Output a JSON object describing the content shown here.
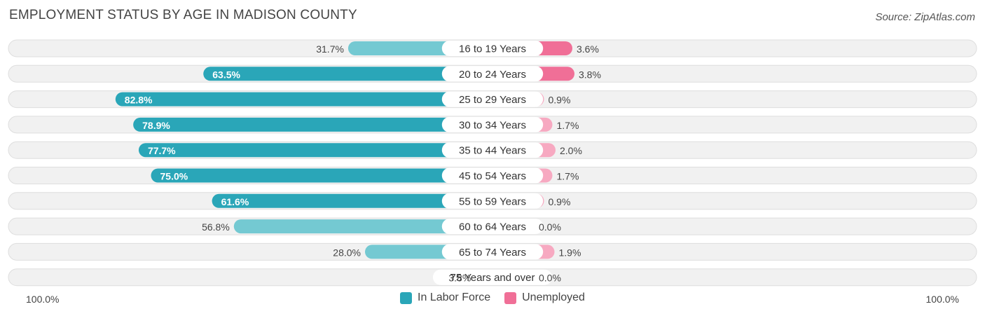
{
  "header": {
    "title": "EMPLOYMENT STATUS BY AGE IN MADISON COUNTY",
    "source": "Source: ZipAtlas.com"
  },
  "legend": {
    "labor_label": "In Labor Force",
    "unemployed_label": "Unemployed"
  },
  "axis": {
    "left_label": "100.0%",
    "right_label": "100.0%"
  },
  "colors": {
    "labor_dark": "#2aa6b8",
    "labor_light": "#74c9d2",
    "unemployed_dark": "#f06f97",
    "unemployed_light": "#f7a9c1",
    "row_bg": "#f1f1f1",
    "row_border": "#dedede"
  },
  "chart_data": {
    "type": "bar",
    "title": "EMPLOYMENT STATUS BY AGE IN MADISON COUNTY",
    "categories": [
      "16 to 19 Years",
      "20 to 24 Years",
      "25 to 29 Years",
      "30 to 34 Years",
      "35 to 44 Years",
      "45 to 54 Years",
      "55 to 59 Years",
      "60 to 64 Years",
      "65 to 74 Years",
      "75 Years and over"
    ],
    "series": [
      {
        "name": "In Labor Force",
        "values": [
          31.7,
          63.5,
          82.8,
          78.9,
          77.7,
          75.0,
          61.6,
          56.8,
          28.0,
          3.8
        ],
        "labels": [
          "31.7%",
          "63.5%",
          "82.8%",
          "78.9%",
          "77.7%",
          "75.0%",
          "61.6%",
          "56.8%",
          "28.0%",
          "3.8%"
        ]
      },
      {
        "name": "Unemployed",
        "values": [
          3.6,
          3.8,
          0.9,
          1.7,
          2.0,
          1.7,
          0.9,
          0.0,
          1.9,
          0.0
        ],
        "labels": [
          "3.6%",
          "3.8%",
          "0.9%",
          "1.7%",
          "2.0%",
          "1.7%",
          "0.9%",
          "0.0%",
          "1.9%",
          "0.0%"
        ]
      }
    ],
    "xlim_left": [
      100,
      0
    ],
    "xlim_right": [
      0,
      100
    ],
    "grid": false,
    "legend_position": "bottom-center"
  }
}
